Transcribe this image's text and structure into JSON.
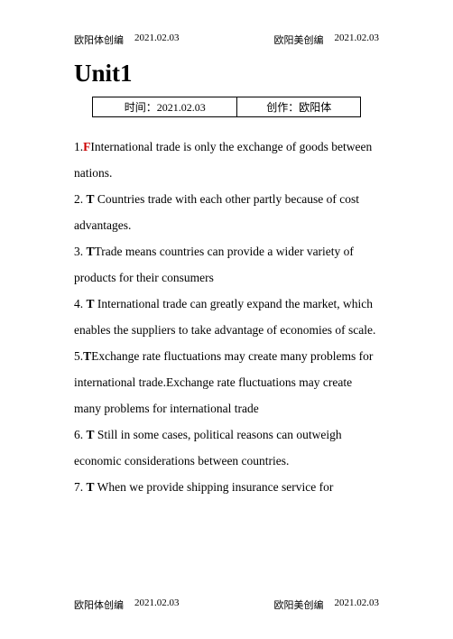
{
  "header": {
    "left_label": "欧阳体创编",
    "left_date": "2021.02.03",
    "right_label": "欧阳美创编",
    "right_date": "2021.02.03"
  },
  "title": "Unit1",
  "meta": {
    "time_label": "时间：2021.02.03",
    "author_label": "创作：欧阳体"
  },
  "items": [
    {
      "num": "1.",
      "mark": "F",
      "mark_color": "#cc0000",
      "text": "International trade is only the exchange of goods between nations."
    },
    {
      "num": "2. ",
      "mark": "T",
      "mark_color": "#000000",
      "text": " Countries trade with each other partly because of cost advantages."
    },
    {
      "num": "3. ",
      "mark": "T",
      "mark_color": "#000000",
      "text": "Trade means countries can provide a wider variety of products for their consumers"
    },
    {
      "num": "4. ",
      "mark": "T",
      "mark_color": "#000000",
      "text": " International trade can greatly expand the market, which enables the suppliers to take advantage of economies of scale."
    },
    {
      "num": "5.",
      "mark": "T",
      "mark_color": "#000000",
      "text": "Exchange rate fluctuations may create many problems for international trade.Exchange rate fluctuations may create many problems for international trade"
    },
    {
      "num": "6. ",
      "mark": "T",
      "mark_color": "#000000",
      "text": " Still in some cases, political reasons can outweigh economic considerations between countries."
    },
    {
      "num": "7. ",
      "mark": "T",
      "mark_color": "#000000",
      "text": " When we provide shipping insurance service for"
    }
  ],
  "footer": {
    "left_label": "欧阳体创编",
    "left_date": "2021.02.03",
    "right_label": "欧阳美创编",
    "right_date": "2021.02.03"
  }
}
